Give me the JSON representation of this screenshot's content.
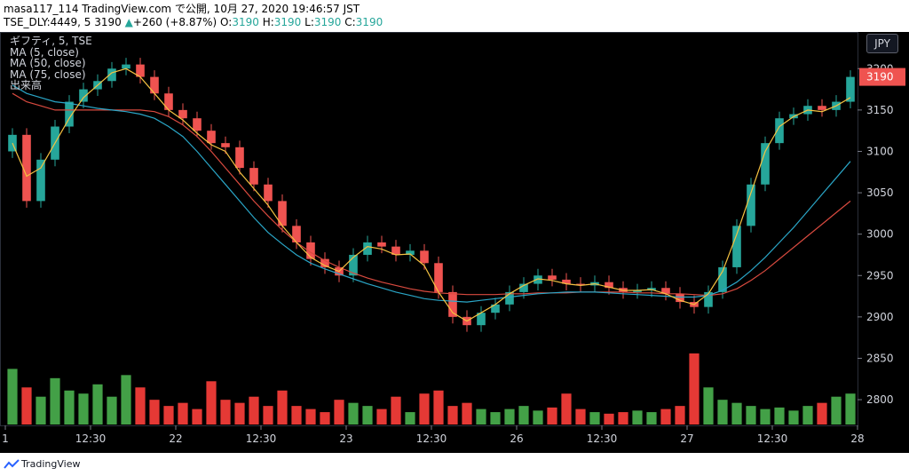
{
  "header": {
    "line1": "masa117_114 TradingView.com で公開, 10月 27, 2020 19:46:57 JST",
    "symbol": "TSE_DLY:4449, 5",
    "last": "3190",
    "change_arrow": "▲",
    "change": "+260 (+8.87%)",
    "o_label": "O:",
    "o": "3190",
    "h_label": "H:",
    "h": "3190",
    "l_label": "L:",
    "l": "3190",
    "c_label": "C:",
    "c": "3190"
  },
  "legend": {
    "title": "ギフティ, 5, TSE",
    "ma1": "MA (5, close)",
    "ma2": "MA (50, close)",
    "ma3": "MA (75, close)",
    "volume": "出来高"
  },
  "currency_button": "JPY",
  "footer": {
    "brand": "TradingView"
  },
  "colors": {
    "up": "#26a69a",
    "down": "#ef5350",
    "ma5": "#f5c242",
    "ma50": "#2aa6c7",
    "ma75": "#d94a3f",
    "vol_up": "#43a047",
    "vol_down": "#e53935",
    "price_badge": "#ef5350"
  },
  "chart_data": {
    "type": "candlestick",
    "y_axis": {
      "min": 2770,
      "max": 3240,
      "ticks": [
        2800,
        2850,
        2900,
        2950,
        3000,
        3050,
        3100,
        3150,
        3200
      ]
    },
    "last_price": "3190",
    "x_ticks": [
      "1",
      "12:30",
      "22",
      "12:30",
      "23",
      "12:30",
      "26",
      "12:30",
      "27",
      "12:30",
      "28"
    ],
    "close": [
      3120,
      3040,
      3090,
      3130,
      3160,
      3175,
      3185,
      3200,
      3205,
      3190,
      3170,
      3150,
      3140,
      3125,
      3110,
      3105,
      3080,
      3060,
      3040,
      3010,
      2990,
      2970,
      2960,
      2950,
      2975,
      2990,
      2985,
      2975,
      2980,
      2965,
      2930,
      2900,
      2890,
      2905,
      2915,
      2930,
      2940,
      2950,
      2945,
      2940,
      2938,
      2942,
      2935,
      2930,
      2932,
      2935,
      2928,
      2918,
      2912,
      2930,
      2960,
      3010,
      3060,
      3110,
      3140,
      3145,
      3155,
      3150,
      3160,
      3190
    ],
    "ma5": [
      3110,
      3070,
      3080,
      3110,
      3140,
      3165,
      3180,
      3195,
      3200,
      3190,
      3170,
      3150,
      3138,
      3122,
      3108,
      3100,
      3075,
      3055,
      3035,
      3010,
      2990,
      2972,
      2962,
      2955,
      2972,
      2985,
      2982,
      2975,
      2976,
      2962,
      2930,
      2905,
      2895,
      2905,
      2915,
      2928,
      2938,
      2946,
      2944,
      2940,
      2938,
      2940,
      2936,
      2932,
      2932,
      2933,
      2928,
      2920,
      2915,
      2928,
      2955,
      3000,
      3050,
      3100,
      3130,
      3142,
      3150,
      3148,
      3155,
      3165
    ],
    "ma50": [
      3180,
      3170,
      3165,
      3160,
      3158,
      3155,
      3152,
      3150,
      3148,
      3145,
      3140,
      3130,
      3118,
      3100,
      3080,
      3060,
      3040,
      3020,
      3002,
      2988,
      2975,
      2965,
      2958,
      2952,
      2946,
      2940,
      2935,
      2930,
      2926,
      2922,
      2920,
      2919,
      2918,
      2920,
      2922,
      2924,
      2926,
      2928,
      2929,
      2930,
      2930,
      2930,
      2929,
      2928,
      2927,
      2926,
      2925,
      2924,
      2924,
      2926,
      2932,
      2942,
      2956,
      2972,
      2990,
      3008,
      3028,
      3048,
      3068,
      3088
    ],
    "ma75": [
      3170,
      3160,
      3155,
      3150,
      3150,
      3150,
      3150,
      3150,
      3150,
      3150,
      3148,
      3142,
      3132,
      3118,
      3100,
      3080,
      3060,
      3040,
      3022,
      3005,
      2990,
      2978,
      2968,
      2960,
      2953,
      2947,
      2942,
      2938,
      2934,
      2931,
      2929,
      2928,
      2927,
      2927,
      2927,
      2928,
      2928,
      2929,
      2929,
      2929,
      2930,
      2930,
      2930,
      2930,
      2929,
      2929,
      2928,
      2928,
      2927,
      2926,
      2928,
      2934,
      2944,
      2956,
      2970,
      2984,
      2998,
      3012,
      3026,
      3040
    ],
    "volume": [
      180,
      120,
      90,
      150,
      110,
      100,
      130,
      90,
      160,
      120,
      80,
      60,
      70,
      50,
      140,
      80,
      70,
      90,
      60,
      110,
      60,
      50,
      40,
      80,
      70,
      60,
      50,
      90,
      40,
      100,
      110,
      60,
      70,
      50,
      40,
      50,
      60,
      45,
      55,
      100,
      50,
      40,
      35,
      40,
      45,
      40,
      50,
      60,
      230,
      120,
      80,
      70,
      60,
      50,
      55,
      45,
      60,
      70,
      90,
      100
    ]
  }
}
